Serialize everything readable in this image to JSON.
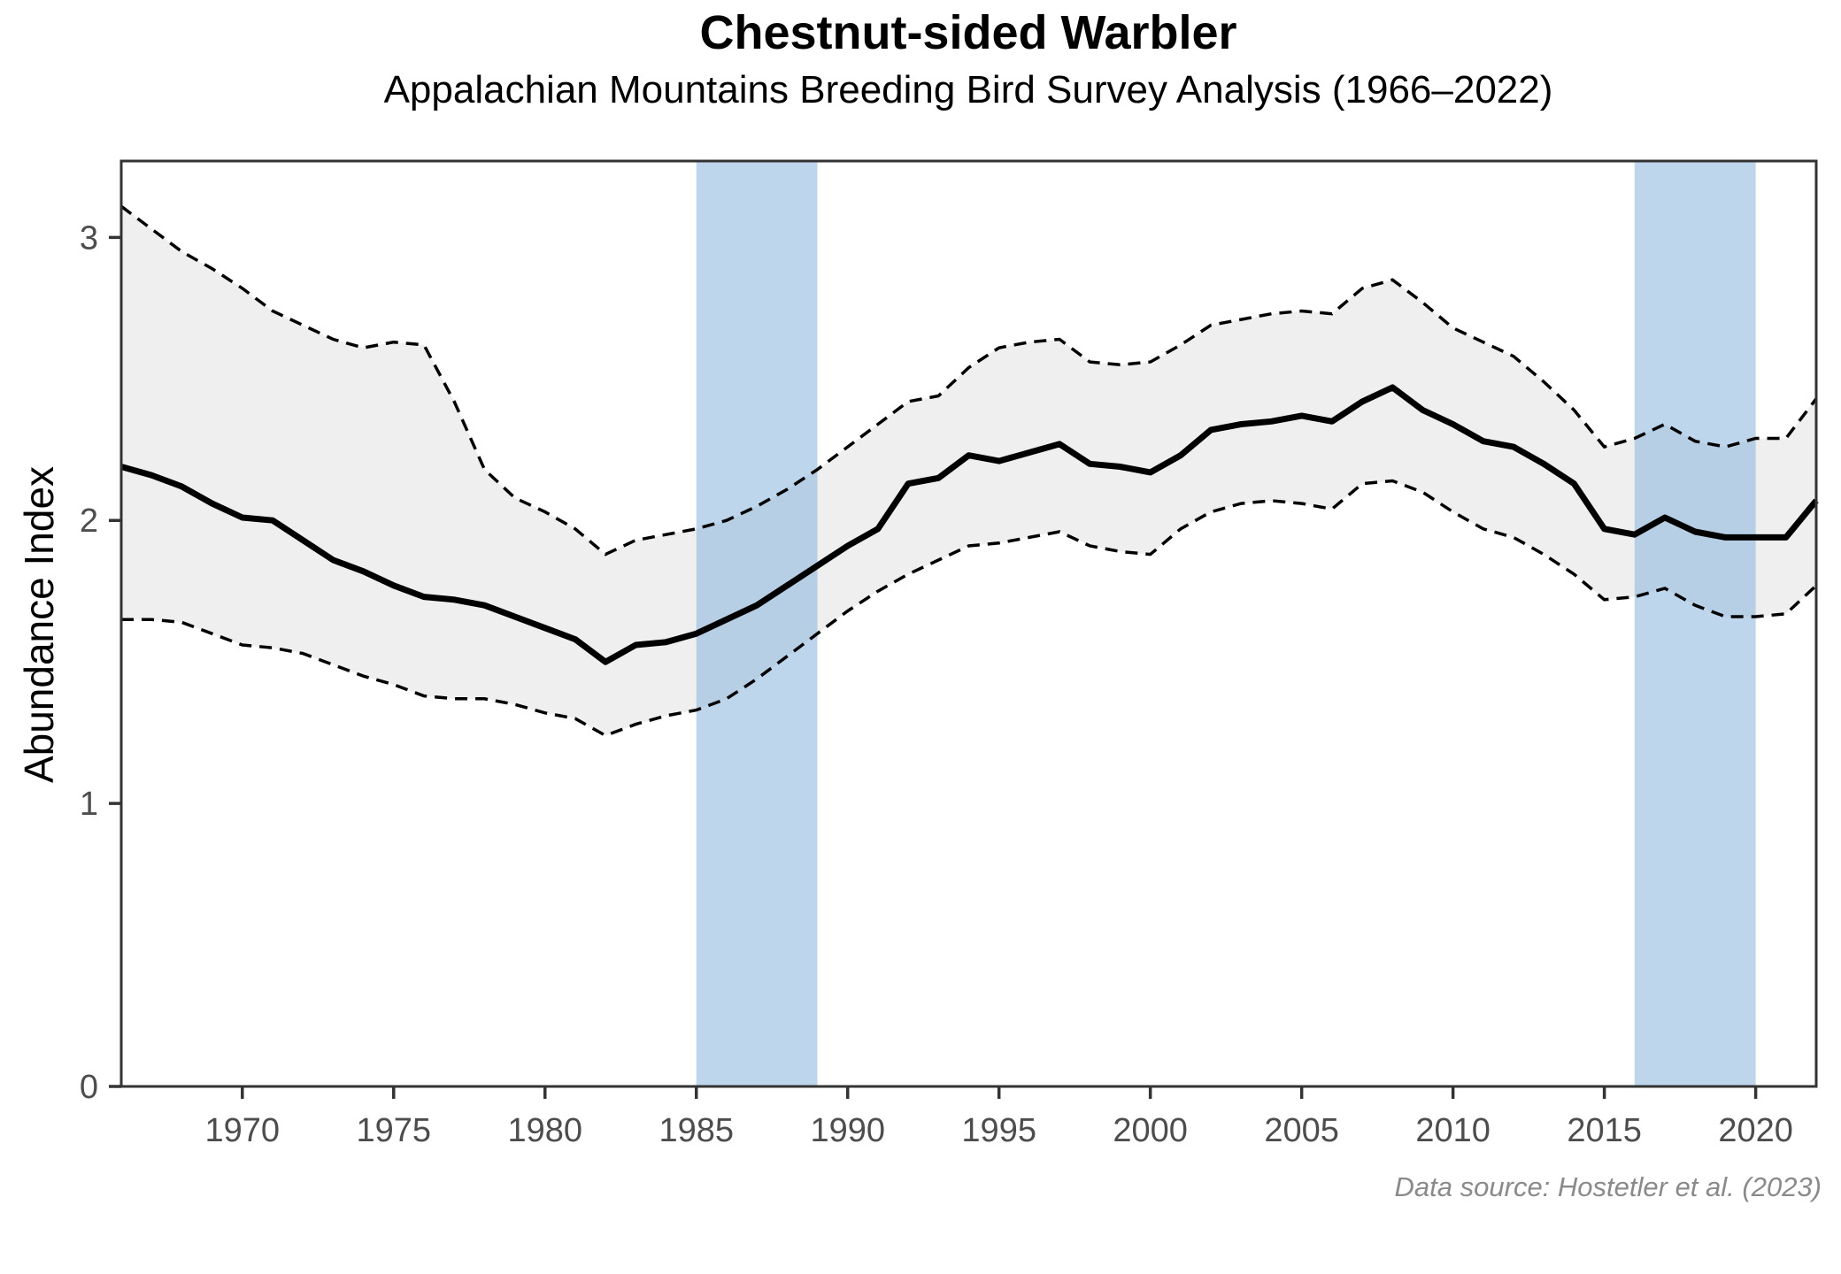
{
  "chart_data": {
    "type": "line",
    "title": "Chestnut-sided Warbler",
    "subtitle": "Appalachian Mountains Breeding Bird Survey Analysis (1966–2022)",
    "caption": "Data source: Hostetler et al. (2023)",
    "xlabel": "",
    "ylabel": "Abundance Index",
    "xlim": [
      1966,
      2022
    ],
    "ylim": [
      0,
      3.27
    ],
    "x_ticks": [
      1970,
      1975,
      1980,
      1985,
      1990,
      1995,
      2000,
      2005,
      2010,
      2015,
      2020
    ],
    "y_ticks": [
      0,
      1,
      2,
      3
    ],
    "grid": false,
    "legend": "none",
    "highlight_bands": [
      {
        "name": "band-1985-1989",
        "from": 1985,
        "to": 1989
      },
      {
        "name": "band-2016-2020",
        "from": 2016,
        "to": 2020
      }
    ],
    "x": [
      1966,
      1967,
      1968,
      1969,
      1970,
      1971,
      1972,
      1973,
      1974,
      1975,
      1976,
      1977,
      1978,
      1979,
      1980,
      1981,
      1982,
      1983,
      1984,
      1985,
      1986,
      1987,
      1988,
      1989,
      1990,
      1991,
      1992,
      1993,
      1994,
      1995,
      1996,
      1997,
      1998,
      1999,
      2000,
      2001,
      2002,
      2003,
      2004,
      2005,
      2006,
      2007,
      2008,
      2009,
      2010,
      2011,
      2012,
      2013,
      2014,
      2015,
      2016,
      2017,
      2018,
      2019,
      2020,
      2021,
      2022
    ],
    "series": [
      {
        "name": "abundance-index",
        "style": "solid",
        "values": [
          2.19,
          2.16,
          2.12,
          2.06,
          2.01,
          2.0,
          1.93,
          1.86,
          1.82,
          1.77,
          1.73,
          1.72,
          1.7,
          1.66,
          1.62,
          1.58,
          1.5,
          1.56,
          1.57,
          1.6,
          1.65,
          1.7,
          1.77,
          1.84,
          1.91,
          1.97,
          2.13,
          2.15,
          2.23,
          2.21,
          2.24,
          2.27,
          2.2,
          2.19,
          2.17,
          2.23,
          2.32,
          2.34,
          2.35,
          2.37,
          2.35,
          2.42,
          2.47,
          2.39,
          2.34,
          2.28,
          2.26,
          2.2,
          2.13,
          1.97,
          1.95,
          2.01,
          1.96,
          1.94,
          1.94,
          1.94,
          2.07
        ]
      },
      {
        "name": "upper-confidence-bound",
        "style": "dashed",
        "values": [
          3.11,
          3.03,
          2.95,
          2.89,
          2.82,
          2.74,
          2.69,
          2.64,
          2.61,
          2.63,
          2.62,
          2.42,
          2.18,
          2.08,
          2.03,
          1.97,
          1.88,
          1.93,
          1.95,
          1.97,
          2.0,
          2.05,
          2.11,
          2.18,
          2.26,
          2.34,
          2.42,
          2.44,
          2.54,
          2.61,
          2.63,
          2.64,
          2.56,
          2.55,
          2.56,
          2.62,
          2.69,
          2.71,
          2.73,
          2.74,
          2.73,
          2.82,
          2.85,
          2.77,
          2.68,
          2.63,
          2.58,
          2.49,
          2.39,
          2.26,
          2.29,
          2.34,
          2.28,
          2.26,
          2.29,
          2.29,
          2.43
        ]
      },
      {
        "name": "lower-confidence-bound",
        "style": "dashed",
        "values": [
          1.65,
          1.65,
          1.64,
          1.6,
          1.56,
          1.55,
          1.53,
          1.49,
          1.45,
          1.42,
          1.38,
          1.37,
          1.37,
          1.35,
          1.32,
          1.3,
          1.24,
          1.28,
          1.31,
          1.33,
          1.37,
          1.44,
          1.52,
          1.6,
          1.68,
          1.75,
          1.81,
          1.86,
          1.91,
          1.92,
          1.94,
          1.96,
          1.91,
          1.89,
          1.88,
          1.97,
          2.03,
          2.06,
          2.07,
          2.06,
          2.04,
          2.13,
          2.14,
          2.1,
          2.03,
          1.97,
          1.94,
          1.88,
          1.81,
          1.72,
          1.73,
          1.76,
          1.7,
          1.66,
          1.66,
          1.67,
          1.77
        ]
      }
    ],
    "colors": {
      "mean_line": "#000000",
      "ci_line": "#000000",
      "ribbon_fill": "#efefef",
      "band_fill": "#87b4dc",
      "panel_border": "#333333",
      "tick_label": "#4d4d4d",
      "caption_text": "#8a8a8a",
      "background": "#ffffff"
    }
  }
}
